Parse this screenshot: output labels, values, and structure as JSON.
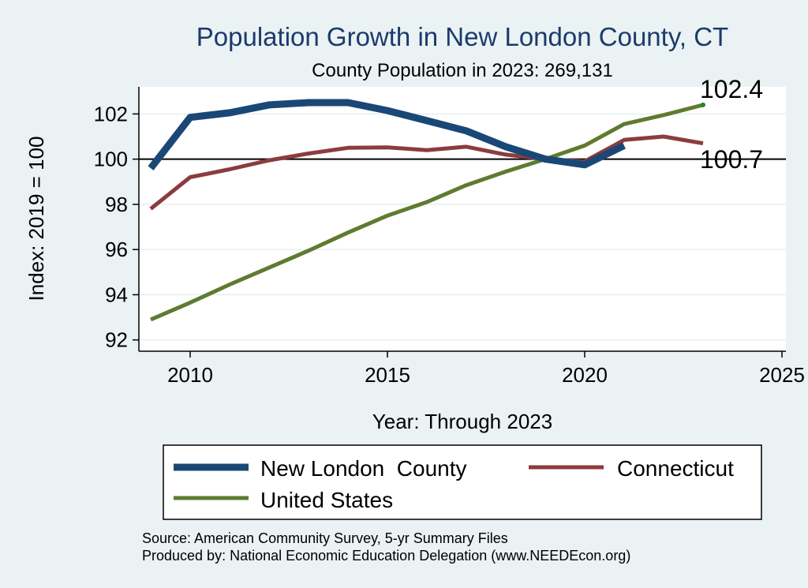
{
  "chart_data": {
    "type": "line",
    "title": "Population Growth in New London County, CT",
    "subtitle": "County Population in 2023: 269,131",
    "xlabel": "Year: Through 2023",
    "ylabel": "Index: 2019 = 100",
    "xlim": [
      2008.7,
      2025.1
    ],
    "ylim": [
      91.5,
      103.2
    ],
    "xticks": [
      2010,
      2015,
      2020,
      2025
    ],
    "yticks": [
      92,
      94,
      96,
      98,
      100,
      102
    ],
    "reference_line": 100,
    "grid": true,
    "series": [
      {
        "name": "New London  County",
        "color": "#1a4876",
        "width": 9,
        "x": [
          2009,
          2010,
          2011,
          2012,
          2013,
          2014,
          2015,
          2016,
          2017,
          2018,
          2019,
          2020,
          2021
        ],
        "values": [
          99.6,
          101.85,
          102.05,
          102.4,
          102.5,
          102.5,
          102.15,
          101.7,
          101.25,
          100.55,
          100.0,
          99.75,
          100.6
        ]
      },
      {
        "name": "Connecticut",
        "color": "#8c3b3e",
        "width": 5,
        "x": [
          2009,
          2010,
          2011,
          2012,
          2013,
          2014,
          2015,
          2016,
          2017,
          2018,
          2019,
          2020,
          2021,
          2022,
          2023
        ],
        "values": [
          97.8,
          99.2,
          99.55,
          99.95,
          100.25,
          100.5,
          100.52,
          100.4,
          100.55,
          100.2,
          100.0,
          99.9,
          100.85,
          101.0,
          100.7
        ]
      },
      {
        "name": "United States",
        "color": "#5e7b2f",
        "width": 5,
        "x": [
          2009,
          2010,
          2011,
          2012,
          2013,
          2014,
          2015,
          2016,
          2017,
          2018,
          2019,
          2020,
          2021,
          2022,
          2023
        ],
        "values": [
          92.9,
          93.65,
          94.45,
          95.2,
          95.95,
          96.75,
          97.5,
          98.1,
          98.85,
          99.45,
          100.0,
          100.6,
          101.55,
          101.95,
          102.4
        ]
      }
    ],
    "end_labels": [
      "102.4",
      "100.7"
    ],
    "legend": {
      "position": "bottom",
      "entries": [
        "New London  County",
        "Connecticut",
        "United States"
      ]
    }
  },
  "notes": {
    "source": "Source: American Community Survey, 5-yr Summary Files",
    "produced_by": "Produced by: National Economic Education Delegation (www.NEEDEcon.org)"
  }
}
